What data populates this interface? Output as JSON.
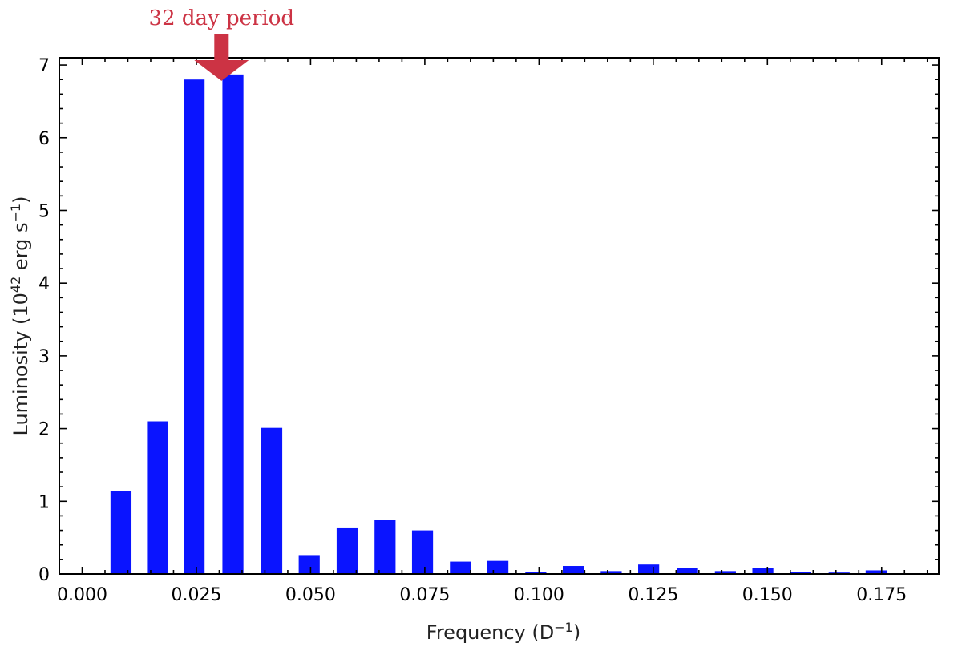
{
  "chart_data": {
    "type": "bar",
    "xlabel_main": "Frequency (D",
    "xlabel_sup": "−1",
    "xlabel_end": ")",
    "ylabel_main": "Luminosity (10",
    "ylabel_sup1": "42",
    "ylabel_mid": " erg s",
    "ylabel_sup2": "−1",
    "ylabel_end": ")",
    "xlim": [
      -0.005,
      0.1875
    ],
    "ylim": [
      0,
      7.1
    ],
    "x_ticks": [
      0.0,
      0.025,
      0.05,
      0.075,
      0.1,
      0.125,
      0.15,
      0.175
    ],
    "x_tick_labels": [
      "0.000",
      "0.025",
      "0.050",
      "0.075",
      "0.100",
      "0.125",
      "0.150",
      "0.175"
    ],
    "y_ticks": [
      0,
      1,
      2,
      3,
      4,
      5,
      6,
      7
    ],
    "y_tick_labels": [
      "0",
      "1",
      "2",
      "3",
      "4",
      "5",
      "6",
      "7"
    ],
    "bar_width": 0.0046,
    "bar_color": "#0a14ff",
    "x": [
      0.0085,
      0.0165,
      0.0245,
      0.033,
      0.0415,
      0.0497,
      0.058,
      0.0663,
      0.0745,
      0.0828,
      0.091,
      0.0993,
      0.1075,
      0.1158,
      0.124,
      0.1325,
      0.1408,
      0.149,
      0.1573,
      0.1657,
      0.1738
    ],
    "values": [
      1.14,
      2.1,
      6.8,
      6.87,
      2.01,
      0.26,
      0.64,
      0.74,
      0.6,
      0.17,
      0.18,
      0.03,
      0.11,
      0.04,
      0.13,
      0.08,
      0.04,
      0.08,
      0.03,
      0.02,
      0.05
    ],
    "grid": false,
    "annotation": {
      "text": "32 day period",
      "x": 0.0305,
      "y": 6.87,
      "color": "#cc3344"
    }
  }
}
